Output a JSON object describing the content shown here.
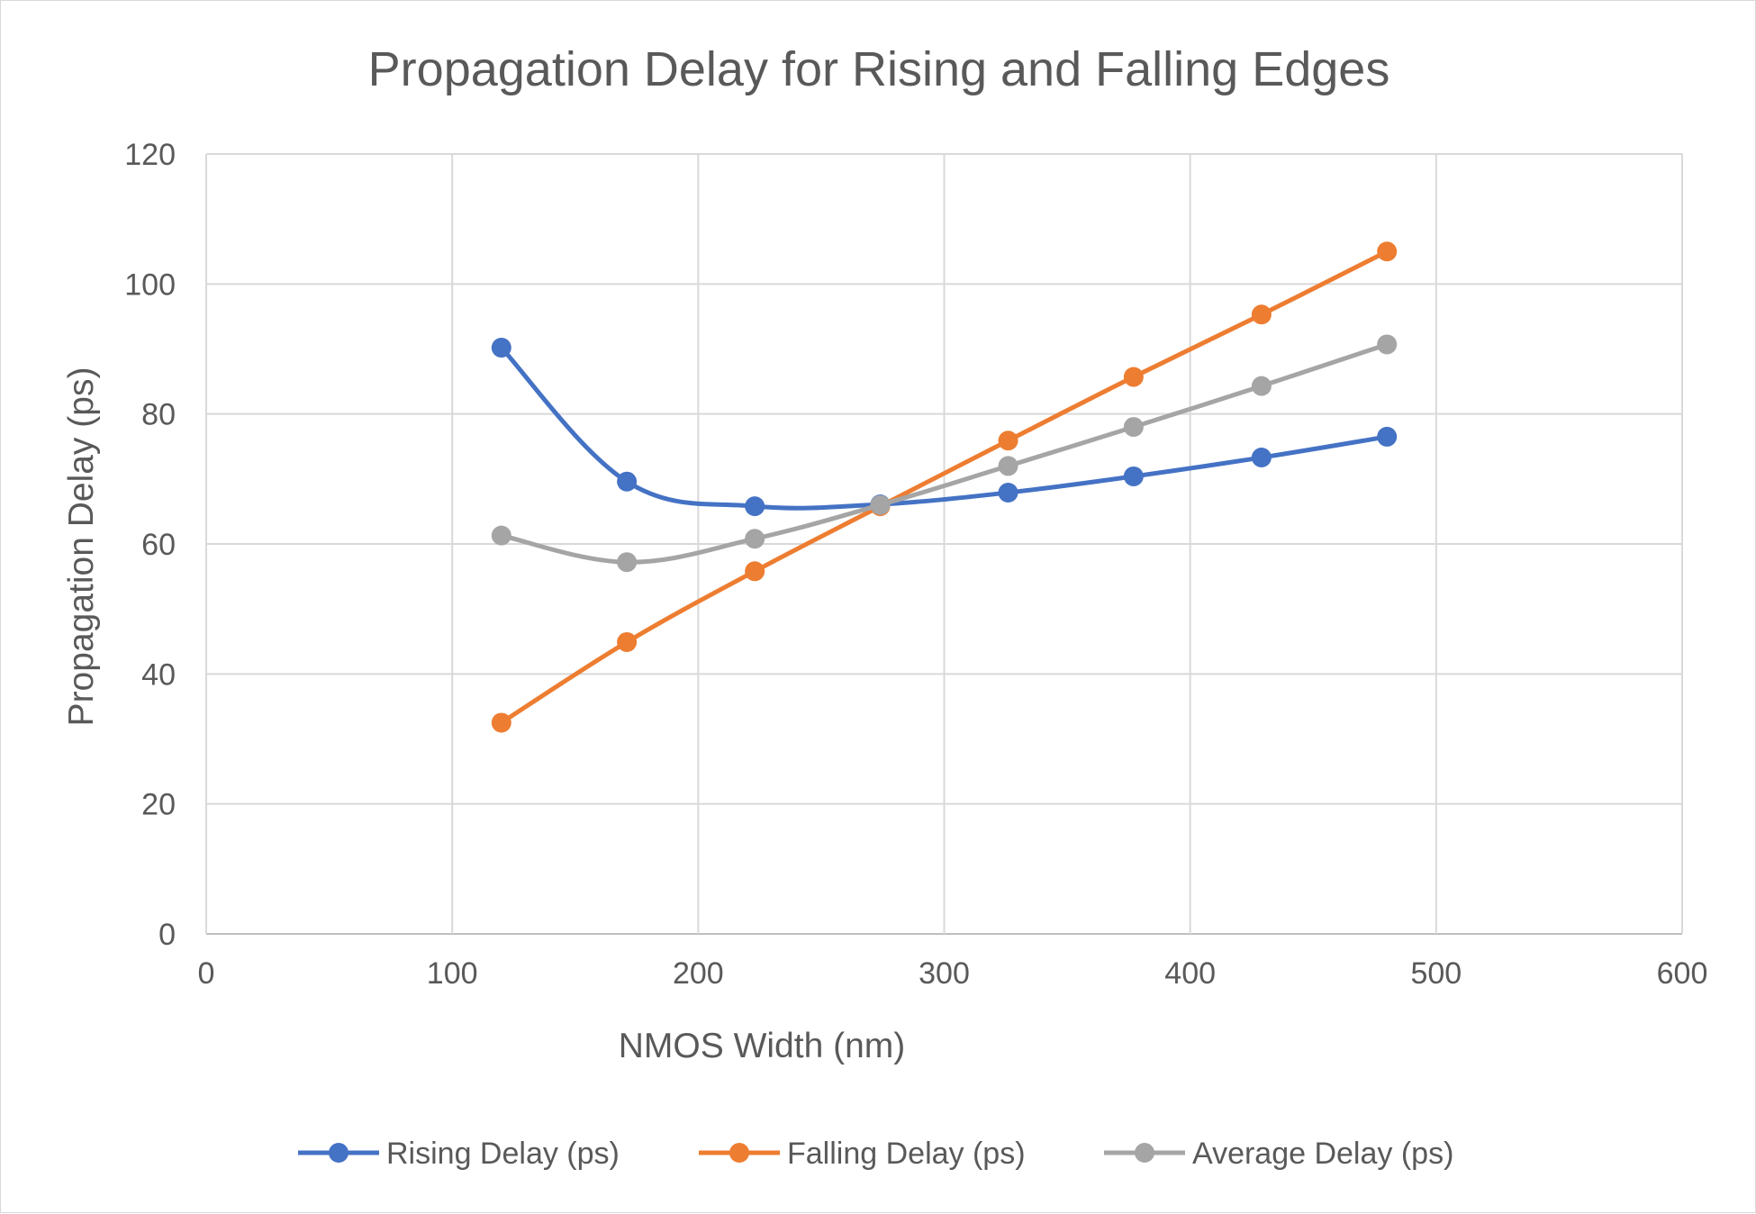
{
  "chart_data": {
    "type": "line",
    "title": "Propagation Delay for Rising and Falling Edges",
    "xlabel": "NMOS Width (nm)",
    "ylabel": "Propagation Delay (ps)",
    "xlim": [
      0,
      600
    ],
    "ylim": [
      0,
      120
    ],
    "xticks": [
      0,
      100,
      200,
      300,
      400,
      500,
      600
    ],
    "yticks": [
      0,
      20,
      40,
      60,
      80,
      100,
      120
    ],
    "x": [
      120,
      171,
      223,
      274,
      326,
      377,
      429,
      480
    ],
    "grid": true,
    "smooth": true,
    "markers": true,
    "legend_position": "bottom",
    "series": [
      {
        "name": "Rising Delay (ps)",
        "color": "#4472c4",
        "values": [
          90.2,
          69.6,
          65.8,
          66.1,
          67.9,
          70.4,
          73.3,
          76.5
        ]
      },
      {
        "name": "Falling Delay (ps)",
        "color": "#ed7d31",
        "values": [
          32.5,
          44.9,
          55.8,
          65.8,
          75.9,
          85.7,
          95.3,
          105.0
        ]
      },
      {
        "name": "Average Delay (ps)",
        "color": "#a5a5a5",
        "values": [
          61.3,
          57.2,
          60.8,
          66.0,
          72.0,
          78.0,
          84.3,
          90.7
        ]
      }
    ]
  }
}
